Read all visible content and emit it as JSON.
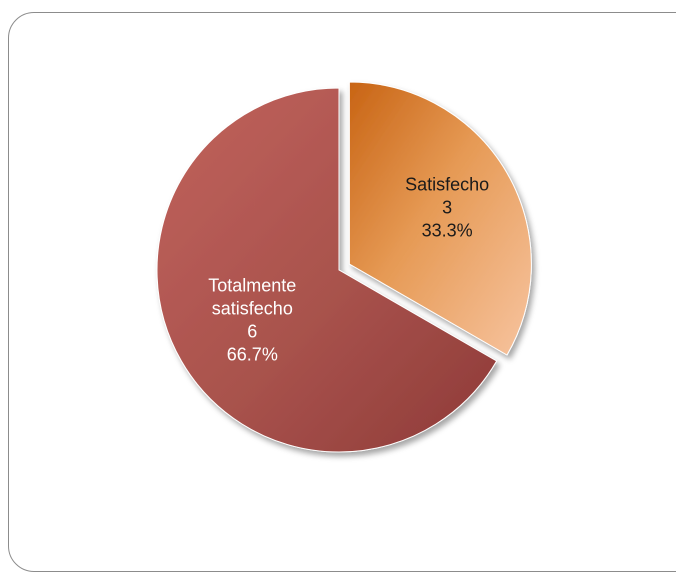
{
  "chart_data": {
    "type": "pie",
    "slices": [
      {
        "label": "Totalmente satisfecho",
        "label_lines": [
          "Totalmente",
          "satisfecho"
        ],
        "value": 6,
        "percent_label": "66.7%",
        "color": "#a8524c",
        "text_color": "#ffffff"
      },
      {
        "label": "Satisfecho",
        "label_lines": [
          "Satisfecho"
        ],
        "value": 3,
        "percent_label": "33.3%",
        "color": "#e69a55",
        "text_color": "#1a1a1a"
      }
    ]
  },
  "colors": {
    "frame_border": "#8c8c8c",
    "slice_1_dark": "#8e3a38",
    "slice_1_light": "#c1625c",
    "slice_2_dark": "#c86414",
    "slice_2_light": "#f7c4a0"
  }
}
